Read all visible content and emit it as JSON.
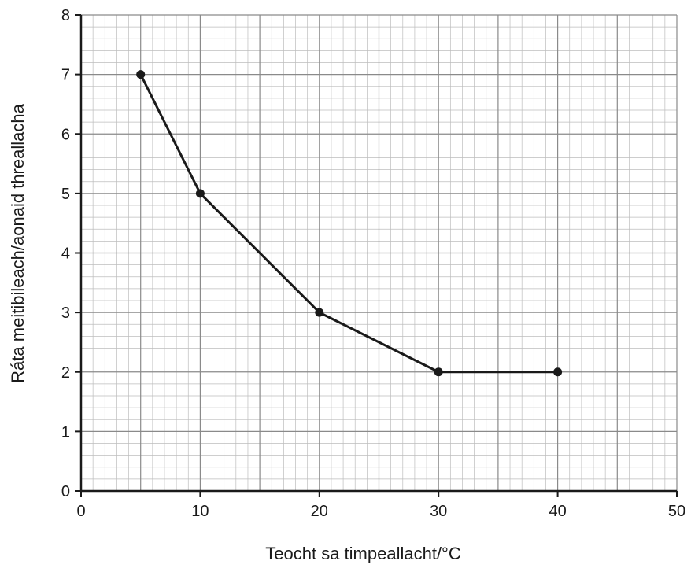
{
  "chart_data": {
    "type": "line",
    "title": "",
    "xlabel": "Teocht sa timpeallacht/°C",
    "ylabel": "Ráta meitibileach/aonaid threallacha",
    "xlim": [
      0,
      50
    ],
    "ylim": [
      0,
      8
    ],
    "x_ticks": [
      0,
      10,
      20,
      30,
      40,
      50
    ],
    "y_ticks": [
      0,
      1,
      2,
      3,
      4,
      5,
      6,
      7,
      8
    ],
    "x_minor_step": 1,
    "y_minor_step": 0.2,
    "grid": true,
    "legend": "none",
    "series": [
      {
        "x": [
          5,
          10,
          20,
          30,
          40
        ],
        "values": [
          7,
          5,
          3,
          2,
          2
        ],
        "color": "#1a1a1a",
        "markers": true
      }
    ]
  }
}
